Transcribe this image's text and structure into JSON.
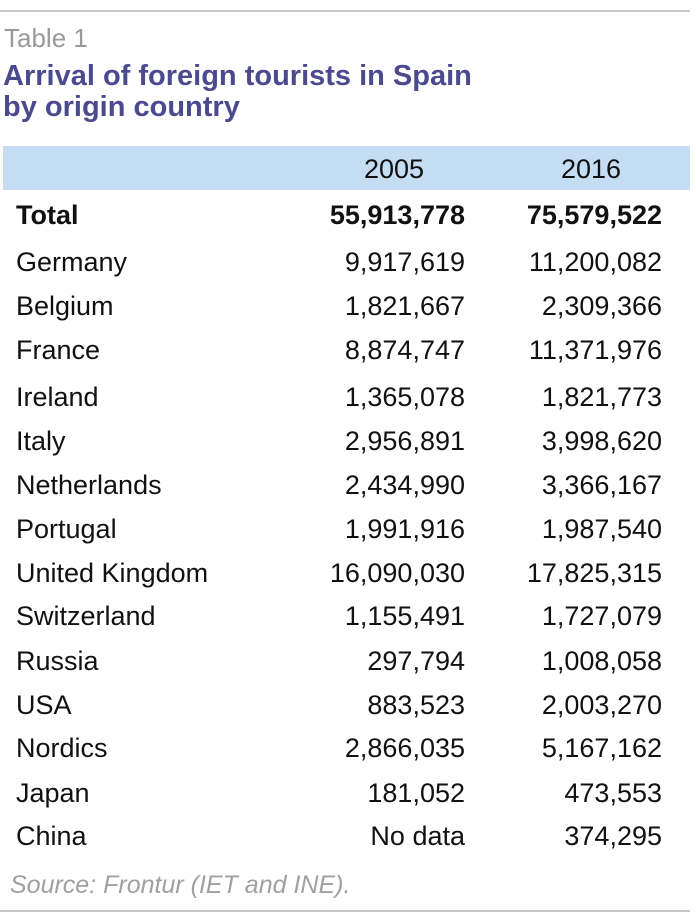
{
  "table": {
    "label": "Table 1",
    "title_line1": "Arrival of foreign tourists in Spain",
    "title_line2": "by origin country",
    "columns": [
      "2005",
      "2016"
    ],
    "rows": [
      {
        "country": "Total",
        "v2005": "55,913,778",
        "v2016": "75,579,522",
        "bold": true
      },
      {
        "country": "Germany",
        "v2005": "9,917,619",
        "v2016": "11,200,082"
      },
      {
        "country": "Belgium",
        "v2005": "1,821,667",
        "v2016": "2,309,366"
      },
      {
        "country": "France",
        "v2005": "8,874,747",
        "v2016": "11,371,976"
      },
      {
        "country": "Ireland",
        "v2005": "1,365,078",
        "v2016": "1,821,773"
      },
      {
        "country": "Italy",
        "v2005": "2,956,891",
        "v2016": "3,998,620"
      },
      {
        "country": "Netherlands",
        "v2005": "2,434,990",
        "v2016": "3,366,167"
      },
      {
        "country": "Portugal",
        "v2005": "1,991,916",
        "v2016": "1,987,540"
      },
      {
        "country": "United Kingdom",
        "v2005": "16,090,030",
        "v2016": "17,825,315"
      },
      {
        "country": "Switzerland",
        "v2005": "1,155,491",
        "v2016": "1,727,079"
      },
      {
        "country": "Russia",
        "v2005": "297,794",
        "v2016": "1,008,058"
      },
      {
        "country": "USA",
        "v2005": "883,523",
        "v2016": "2,003,270"
      },
      {
        "country": "Nordics",
        "v2005": "2,866,035",
        "v2016": "5,167,162"
      },
      {
        "country": "Japan",
        "v2005": "181,052",
        "v2016": "473,553"
      },
      {
        "country": "China",
        "v2005": "No data",
        "v2016": "374,295"
      }
    ],
    "source": "Source: Frontur (IET and INE)."
  },
  "colors": {
    "title": "#4b4a8f",
    "header_band": "#c5ddf2",
    "label": "#9a9a9a"
  }
}
